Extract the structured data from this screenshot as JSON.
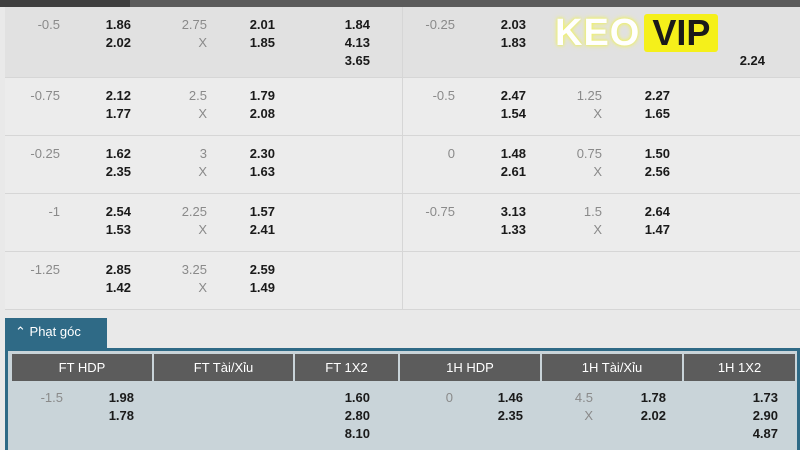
{
  "rows": [
    {
      "left": {
        "hdp": "-0.5",
        "hdp_odds": [
          "1.86",
          "2.02"
        ],
        "ou": "2.75",
        "ou_x": "X",
        "ou_odds": [
          "2.01",
          "1.85"
        ],
        "x12": [
          "1.84",
          "4.13",
          "3.65"
        ]
      },
      "right": {
        "hdp": "-0.25",
        "hdp_odds": [
          "2.03",
          "1.83"
        ],
        "ou": "",
        "ou_x": "",
        "ou_odds": [
          "",
          ""
        ],
        "x12": [
          "",
          "",
          "2.24"
        ]
      }
    },
    {
      "left": {
        "hdp": "-0.75",
        "hdp_odds": [
          "2.12",
          "1.77"
        ],
        "ou": "2.5",
        "ou_x": "X",
        "ou_odds": [
          "1.79",
          "2.08"
        ],
        "x12": [
          "",
          "",
          ""
        ]
      },
      "right": {
        "hdp": "-0.5",
        "hdp_odds": [
          "2.47",
          "1.54"
        ],
        "ou": "1.25",
        "ou_x": "X",
        "ou_odds": [
          "2.27",
          "1.65"
        ],
        "x12": [
          "",
          "",
          ""
        ]
      }
    },
    {
      "left": {
        "hdp": "-0.25",
        "hdp_odds": [
          "1.62",
          "2.35"
        ],
        "ou": "3",
        "ou_x": "X",
        "ou_odds": [
          "2.30",
          "1.63"
        ],
        "x12": [
          "",
          "",
          ""
        ]
      },
      "right": {
        "hdp": "0",
        "hdp_odds": [
          "1.48",
          "2.61"
        ],
        "ou": "0.75",
        "ou_x": "X",
        "ou_odds": [
          "1.50",
          "2.56"
        ],
        "x12": [
          "",
          "",
          ""
        ]
      }
    },
    {
      "left": {
        "hdp": "-1",
        "hdp_odds": [
          "2.54",
          "1.53"
        ],
        "ou": "2.25",
        "ou_x": "X",
        "ou_odds": [
          "1.57",
          "2.41"
        ],
        "x12": [
          "",
          "",
          ""
        ]
      },
      "right": {
        "hdp": "-0.75",
        "hdp_odds": [
          "3.13",
          "1.33"
        ],
        "ou": "1.5",
        "ou_x": "X",
        "ou_odds": [
          "2.64",
          "1.47"
        ],
        "x12": [
          "",
          "",
          ""
        ]
      }
    },
    {
      "left": {
        "hdp": "-1.25",
        "hdp_odds": [
          "2.85",
          "1.42"
        ],
        "ou": "3.25",
        "ou_x": "X",
        "ou_odds": [
          "2.59",
          "1.49"
        ],
        "x12": [
          "",
          "",
          ""
        ]
      },
      "right": {
        "hdp": "",
        "hdp_odds": [
          "",
          ""
        ],
        "ou": "",
        "ou_x": "",
        "ou_odds": [
          "",
          ""
        ],
        "x12": [
          "",
          "",
          ""
        ]
      }
    }
  ],
  "logo": {
    "text_a": "KEO",
    "text_b": "VIP",
    "accent": "#f5f01a"
  },
  "corner": {
    "tab_icon": "chevron-up-icon",
    "tab_label": "Phạt góc",
    "headers": [
      "FT HDP",
      "FT Tài/Xỉu",
      "FT 1X2",
      "1H HDP",
      "1H Tài/Xỉu",
      "1H 1X2"
    ],
    "row": {
      "ft_hdp": "-1.5",
      "ft_hdp_odds": [
        "1.98",
        "1.78"
      ],
      "ft_1x2": [
        "1.60",
        "2.80",
        "8.10"
      ],
      "h1_hdp": "0",
      "h1_hdp_odds": [
        "1.46",
        "2.35"
      ],
      "h1_ou": "4.5",
      "h1_ou_x": "X",
      "h1_ou_odds": [
        "1.78",
        "2.02"
      ],
      "h1_1x2": [
        "1.73",
        "2.90",
        "4.87"
      ]
    }
  },
  "colors": {
    "tab": "#2f6a86",
    "header": "#5c5c5c",
    "panel": "#c9d4d9"
  }
}
